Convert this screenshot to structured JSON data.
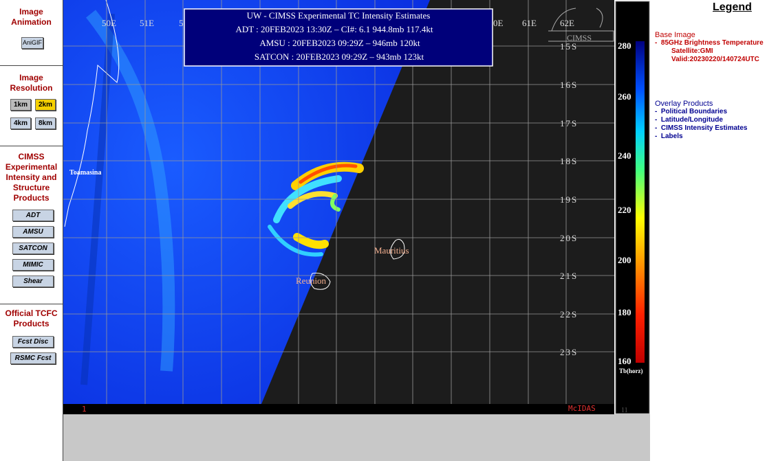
{
  "sidebar": [
    {
      "title": "Image Animation",
      "buttons": [
        "AniGIF"
      ]
    },
    {
      "title": "Image Resolution",
      "buttons": [
        "1km",
        "2km",
        "4km",
        "8km"
      ]
    },
    {
      "title": "CIMSS Experimental Intensity and Structure Products",
      "buttons": [
        "ADT",
        "AMSU",
        "SATCON",
        "MIMIC",
        "Shear"
      ]
    },
    {
      "title": "Official TCFC Products",
      "buttons": [
        "Fcst Disc",
        "RSMC Fcst"
      ]
    }
  ],
  "image": {
    "header": {
      "title": "UW - CIMSS Experimental TC Intensity Estimates",
      "lines": [
        "ADT : 20FEB2023 13:30Z –  CI#: 6.1   944.8mb   117.4kt",
        "AMSU : 20FEB2023 09:29Z –  946mb   120kt",
        "SATCON : 20FEB2023 09:29Z –  943mb   123kt"
      ]
    },
    "lon_labels": [
      "50E",
      "51E",
      "5",
      "0E",
      "61E",
      "62E"
    ],
    "lat_labels": [
      "15S",
      "16S",
      "17S",
      "18S",
      "19S",
      "20S",
      "21S",
      "22S",
      "23S"
    ],
    "places": [
      "Toamasina",
      "Mauritius",
      "Reunion"
    ],
    "footer": [
      "1",
      "McIDAS"
    ],
    "logo": "CIMSS"
  },
  "colorbar": {
    "ticks": [
      "280",
      "260",
      "240",
      "220",
      "200",
      "180",
      "160"
    ],
    "unit": "Tb(horz)",
    "footer": "11"
  },
  "legend": {
    "title": "Legend",
    "base_heading": "Base Image",
    "base_items": [
      "85GHz Brightness Temperature",
      "Satellite:GMI",
      "Valid:20230220/140724UTC"
    ],
    "overlay_heading": "Overlay Products",
    "overlay_items": [
      "Political Boundaries",
      "Latitude/Longitude",
      "CIMSS Intensity Estimates",
      "Labels"
    ]
  }
}
